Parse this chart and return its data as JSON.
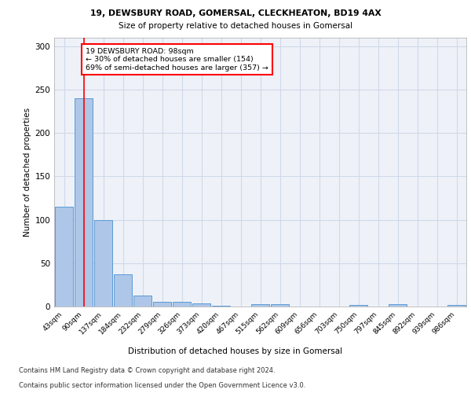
{
  "title1": "19, DEWSBURY ROAD, GOMERSAL, CLECKHEATON, BD19 4AX",
  "title2": "Size of property relative to detached houses in Gomersal",
  "xlabel": "Distribution of detached houses by size in Gomersal",
  "ylabel": "Number of detached properties",
  "footnote1": "Contains HM Land Registry data © Crown copyright and database right 2024.",
  "footnote2": "Contains public sector information licensed under the Open Government Licence v3.0.",
  "bar_labels": [
    "43sqm",
    "90sqm",
    "137sqm",
    "184sqm",
    "232sqm",
    "279sqm",
    "326sqm",
    "373sqm",
    "420sqm",
    "467sqm",
    "515sqm",
    "562sqm",
    "609sqm",
    "656sqm",
    "703sqm",
    "750sqm",
    "797sqm",
    "845sqm",
    "892sqm",
    "939sqm",
    "986sqm"
  ],
  "bar_values": [
    115,
    240,
    100,
    37,
    13,
    5,
    5,
    4,
    1,
    0,
    3,
    3,
    0,
    0,
    0,
    2,
    0,
    3,
    0,
    0,
    2
  ],
  "bar_color": "#aec6e8",
  "bar_edge_color": "#5b9bd5",
  "grid_color": "#d0d8e8",
  "background_color": "#eef2f8",
  "red_line_x": 1,
  "annotation_text": "19 DEWSBURY ROAD: 98sqm\n← 30% of detached houses are smaller (154)\n69% of semi-detached houses are larger (357) →",
  "annotation_box_color": "white",
  "annotation_box_edge": "red",
  "ylim": [
    0,
    310
  ],
  "yticks": [
    0,
    50,
    100,
    150,
    200,
    250,
    300
  ]
}
